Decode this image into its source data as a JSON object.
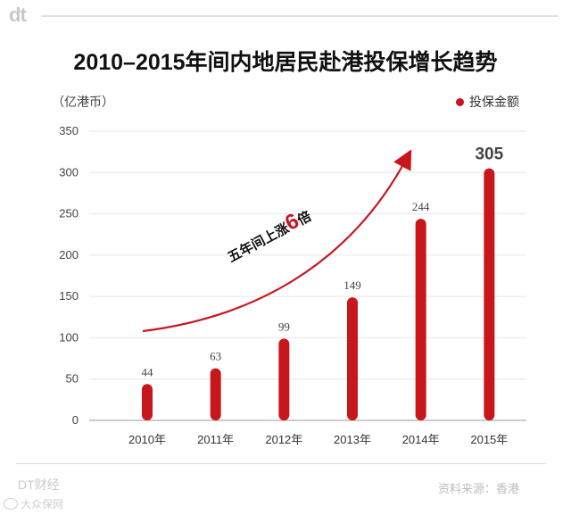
{
  "header": {
    "logo": "dt",
    "title": "2010–2015年间内地居民赴港投保增长趋势"
  },
  "chart_data": {
    "type": "bar",
    "title": "2010–2015年间内地居民赴港投保增长趋势",
    "ylabel": "（亿港币）",
    "xlabel": "",
    "categories": [
      "2010年",
      "2011年",
      "2012年",
      "2013年",
      "2014年",
      "2015年"
    ],
    "series": [
      {
        "name": "投保金额",
        "values": [
          44,
          63,
          99,
          149,
          244,
          305
        ]
      }
    ],
    "value_labels": [
      "44",
      "63",
      "99",
      "149",
      "244",
      "305"
    ],
    "ylim": [
      0,
      350
    ],
    "yticks": [
      0,
      50,
      100,
      150,
      200,
      250,
      300,
      350
    ],
    "ytick_labels": [
      "0",
      "50",
      "100",
      "150",
      "200",
      "250",
      "300",
      "350"
    ],
    "grid": true,
    "legend": "top-right",
    "annotation": {
      "text": "五年间上涨",
      "emphasis": "6",
      "suffix": "倍"
    },
    "colors": {
      "bar": "#c8161d",
      "grid": "#e6e6e6",
      "axis": "#999999",
      "highlight": "#c8161d"
    }
  },
  "footer": {
    "brand": "DT财经",
    "source": "资料来源：香港"
  },
  "watermark": {
    "text": "大众保网"
  }
}
